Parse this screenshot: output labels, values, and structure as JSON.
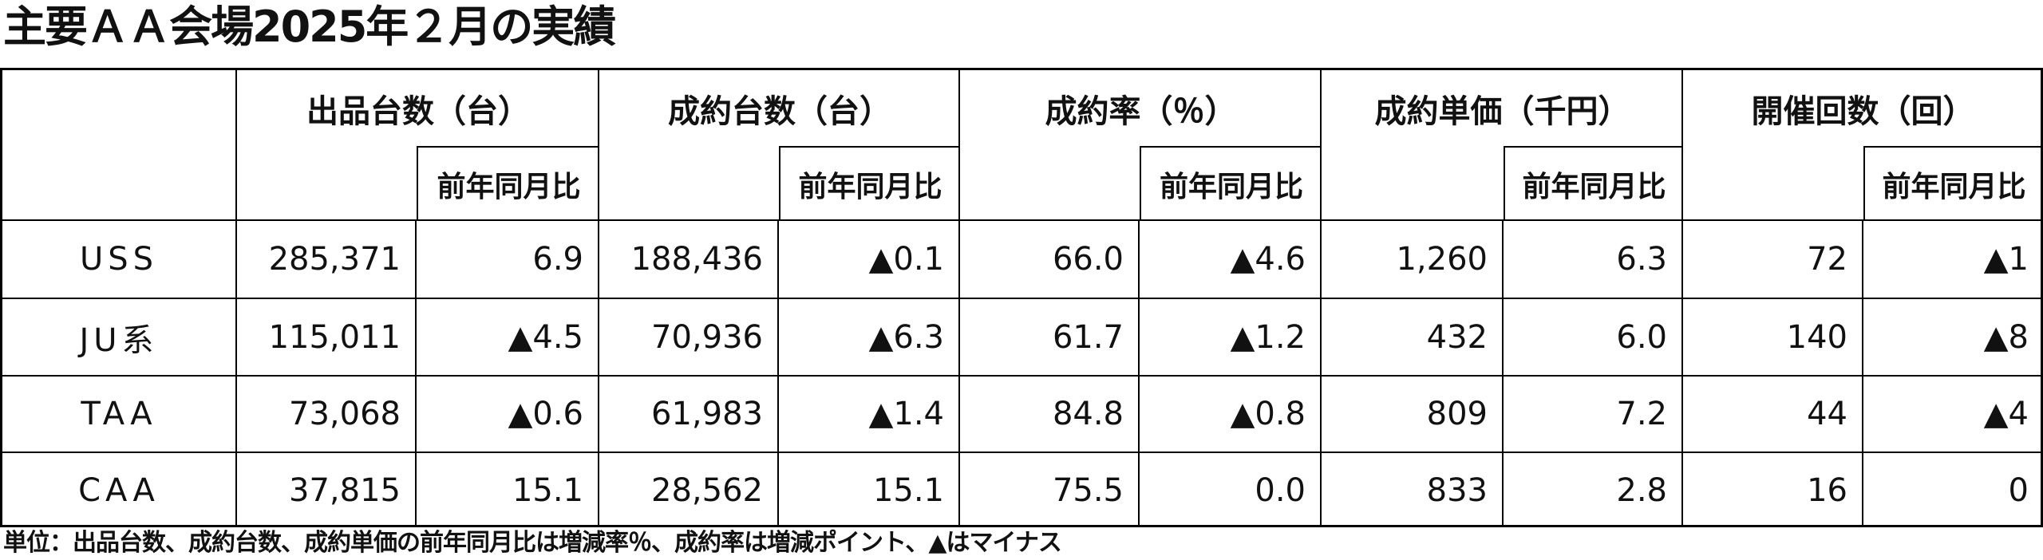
{
  "title": "主要ＡＡ会場2025年２月の実績",
  "table": {
    "columns": [
      {
        "label": "出品台数（台）",
        "sub": "前年同月比"
      },
      {
        "label": "成約台数（台）",
        "sub": "前年同月比"
      },
      {
        "label": "成約率（％）",
        "sub": "前年同月比"
      },
      {
        "label": "成約単価（千円）",
        "sub": "前年同月比"
      },
      {
        "label": "開催回数（回）",
        "sub": "前年同月比"
      }
    ],
    "rows": [
      {
        "label": "USS",
        "cells": [
          "285,371",
          "6.9",
          "188,436",
          "▲0.1",
          "66.0",
          "▲4.6",
          "1,260",
          "6.3",
          "72",
          "▲1"
        ]
      },
      {
        "label": "JU系",
        "cells": [
          "115,011",
          "▲4.5",
          "70,936",
          "▲6.3",
          "61.7",
          "▲1.2",
          "432",
          "6.0",
          "140",
          "▲8"
        ]
      },
      {
        "label": "TAA",
        "cells": [
          "73,068",
          "▲0.6",
          "61,983",
          "▲1.4",
          "84.8",
          "▲0.8",
          "809",
          "7.2",
          "44",
          "▲4"
        ]
      },
      {
        "label": "CAA",
        "cells": [
          "37,815",
          "15.1",
          "28,562",
          "15.1",
          "75.5",
          "0.0",
          "833",
          "2.8",
          "16",
          "0"
        ]
      }
    ]
  },
  "footnote": "単位：出品台数、成約台数、成約単価の前年同月比は増減率％、成約率は増減ポイント、▲はマイナス"
}
